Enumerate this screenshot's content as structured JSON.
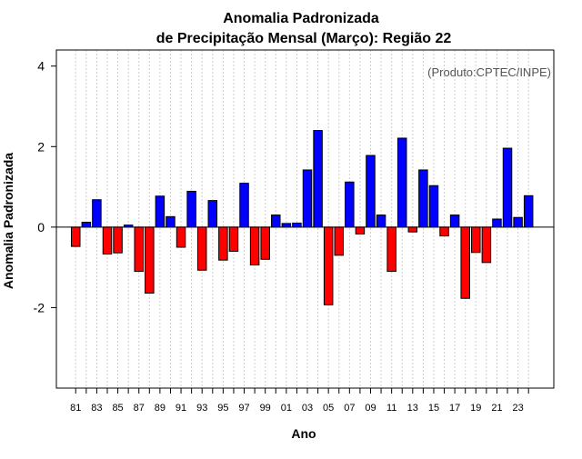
{
  "chart_data": {
    "type": "bar",
    "title_line1": "Anomalia Padronizada",
    "title_line2": "de Precipitação Mensal (Março): Região 22",
    "xlabel": "Ano",
    "ylabel": "Anomalia Padronizada",
    "credit": "(Produto:CPTEC/INPE)",
    "ylim": [
      -4,
      4.4
    ],
    "yticks": [
      -2,
      0,
      2,
      4
    ],
    "years": [
      1981,
      1982,
      1983,
      1984,
      1985,
      1986,
      1987,
      1988,
      1989,
      1990,
      1991,
      1992,
      1993,
      1994,
      1995,
      1996,
      1997,
      1998,
      1999,
      2000,
      2001,
      2002,
      2003,
      2004,
      2005,
      2006,
      2007,
      2008,
      2009,
      2010,
      2011,
      2012,
      2013,
      2014,
      2015,
      2016,
      2017,
      2018,
      2019,
      2020,
      2021,
      2022,
      2023,
      2024
    ],
    "xtick_labels": [
      "81",
      "83",
      "85",
      "87",
      "89",
      "91",
      "93",
      "95",
      "97",
      "99",
      "01",
      "03",
      "05",
      "07",
      "09",
      "11",
      "13",
      "15",
      "17",
      "19",
      "21",
      "23"
    ],
    "values": [
      -0.48,
      0.12,
      0.68,
      -0.67,
      -0.64,
      0.05,
      -1.1,
      -1.64,
      0.77,
      0.26,
      -0.5,
      0.89,
      -1.07,
      0.66,
      -0.82,
      -0.6,
      1.09,
      -0.94,
      -0.8,
      0.3,
      0.09,
      0.1,
      1.42,
      2.4,
      -1.93,
      -0.7,
      1.12,
      -0.17,
      1.78,
      0.3,
      -1.1,
      2.21,
      -0.12,
      1.42,
      1.03,
      -0.22,
      0.3,
      -1.77,
      -0.63,
      -0.88,
      0.2,
      1.96,
      0.24,
      0.78
    ],
    "colors": {
      "positive": "#0000ff",
      "negative": "#ff0000",
      "grid": "#d0d0d0",
      "axis": "#000000",
      "credit": "#555555"
    }
  }
}
